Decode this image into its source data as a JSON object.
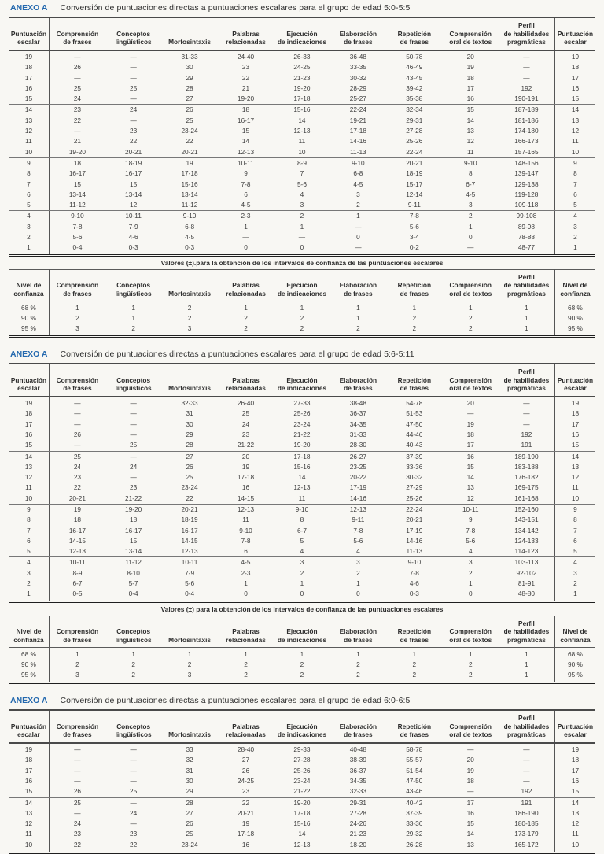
{
  "colors": {
    "anexo_blue": "#2368ae",
    "paper": "#f8f7f3",
    "text": "#3a3a3a"
  },
  "columns": {
    "scalar_header": "Puntuación\nescalar",
    "conf_header": "Nivel de\nconfianza",
    "tests": [
      "Comprensión\nde frases",
      "Conceptos\nlingüísticos",
      "Morfosintaxis",
      "Palabras\nrelacionadas",
      "Ejecución\nde indicaciones",
      "Elaboración\nde frases",
      "Repetición\nde frases",
      "Comprensión\noral de textos",
      "Perfil\nde habilidades\npragmáticas"
    ]
  },
  "sections": [
    {
      "anexo": "ANEXO A",
      "title": "Conversión de puntuaciones directas a puntuaciones escalares para el grupo de edad 5:0-5:5",
      "rows": [
        {
          "scalar": "19",
          "values": [
            "—",
            "—",
            "31-33",
            "24-40",
            "26-33",
            "36-48",
            "50-78",
            "20",
            "—"
          ]
        },
        {
          "scalar": "18",
          "values": [
            "26",
            "—",
            "30",
            "23",
            "24-25",
            "33-35",
            "46-49",
            "19",
            "—"
          ]
        },
        {
          "scalar": "17",
          "values": [
            "—",
            "—",
            "29",
            "22",
            "21-23",
            "30-32",
            "43-45",
            "18",
            "—"
          ]
        },
        {
          "scalar": "16",
          "values": [
            "25",
            "25",
            "28",
            "21",
            "19-20",
            "28-29",
            "39-42",
            "17",
            "192"
          ]
        },
        {
          "scalar": "15",
          "values": [
            "24",
            "—",
            "27",
            "19-20",
            "17-18",
            "25-27",
            "35-38",
            "16",
            "190-191"
          ]
        },
        {
          "scalar": "14",
          "values": [
            "23",
            "24",
            "26",
            "18",
            "15-16",
            "22-24",
            "32-34",
            "15",
            "187-189"
          ]
        },
        {
          "scalar": "13",
          "values": [
            "22",
            "—",
            "25",
            "16-17",
            "14",
            "19-21",
            "29-31",
            "14",
            "181-186"
          ]
        },
        {
          "scalar": "12",
          "values": [
            "—",
            "23",
            "23-24",
            "15",
            "12-13",
            "17-18",
            "27-28",
            "13",
            "174-180"
          ]
        },
        {
          "scalar": "11",
          "values": [
            "21",
            "22",
            "22",
            "14",
            "11",
            "14-16",
            "25-26",
            "12",
            "166-173"
          ]
        },
        {
          "scalar": "10",
          "values": [
            "19-20",
            "20-21",
            "20-21",
            "12-13",
            "10",
            "11-13",
            "22-24",
            "11",
            "157-165"
          ]
        },
        {
          "scalar": "9",
          "values": [
            "18",
            "18-19",
            "19",
            "10-11",
            "8-9",
            "9-10",
            "20-21",
            "9-10",
            "148-156"
          ]
        },
        {
          "scalar": "8",
          "values": [
            "16-17",
            "16-17",
            "17-18",
            "9",
            "7",
            "6-8",
            "18-19",
            "8",
            "139-147"
          ]
        },
        {
          "scalar": "7",
          "values": [
            "15",
            "15",
            "15-16",
            "7-8",
            "5-6",
            "4-5",
            "15-17",
            "6-7",
            "129-138"
          ]
        },
        {
          "scalar": "6",
          "values": [
            "13-14",
            "13-14",
            "13-14",
            "6",
            "4",
            "3",
            "12-14",
            "4-5",
            "119-128"
          ]
        },
        {
          "scalar": "5",
          "values": [
            "11-12",
            "12",
            "11-12",
            "4-5",
            "3",
            "2",
            "9-11",
            "3",
            "109-118"
          ]
        },
        {
          "scalar": "4",
          "values": [
            "9-10",
            "10-11",
            "9-10",
            "2-3",
            "2",
            "1",
            "7-8",
            "2",
            "99-108"
          ]
        },
        {
          "scalar": "3",
          "values": [
            "7-8",
            "7-9",
            "6-8",
            "1",
            "1",
            "—",
            "5-6",
            "1",
            "89-98"
          ]
        },
        {
          "scalar": "2",
          "values": [
            "5-6",
            "4-6",
            "4-5",
            "—",
            "—",
            "0",
            "3-4",
            "0",
            "78-88"
          ]
        },
        {
          "scalar": "1",
          "values": [
            "0-4",
            "0-3",
            "0-3",
            "0",
            "0",
            "—",
            "0-2",
            "—",
            "48-77"
          ]
        }
      ],
      "valores_caption": "Valores (±).para la obtención de los intervalos de confianza de las puntuaciones escalares",
      "conf_rows": [
        {
          "level": "68 %",
          "values": [
            "1",
            "1",
            "2",
            "1",
            "1",
            "1",
            "1",
            "1",
            "1"
          ]
        },
        {
          "level": "90 %",
          "values": [
            "2",
            "1",
            "2",
            "2",
            "2",
            "1",
            "2",
            "2",
            "1"
          ]
        },
        {
          "level": "95 %",
          "values": [
            "3",
            "2",
            "3",
            "2",
            "2",
            "2",
            "2",
            "2",
            "1"
          ]
        }
      ]
    },
    {
      "anexo": "ANEXO A",
      "title": "Conversión de puntuaciones directas a puntuaciones escalares para el grupo de edad 5:6-5:11",
      "rows": [
        {
          "scalar": "19",
          "values": [
            "—",
            "—",
            "32-33",
            "26-40",
            "27-33",
            "38-48",
            "54-78",
            "20",
            "—"
          ]
        },
        {
          "scalar": "18",
          "values": [
            "—",
            "—",
            "31",
            "25",
            "25-26",
            "36-37",
            "51-53",
            "—",
            "—"
          ]
        },
        {
          "scalar": "17",
          "values": [
            "—",
            "—",
            "30",
            "24",
            "23-24",
            "34-35",
            "47-50",
            "19",
            "—"
          ]
        },
        {
          "scalar": "16",
          "values": [
            "26",
            "—",
            "29",
            "23",
            "21-22",
            "31-33",
            "44-46",
            "18",
            "192"
          ]
        },
        {
          "scalar": "15",
          "values": [
            "—",
            "25",
            "28",
            "21-22",
            "19-20",
            "28-30",
            "40-43",
            "17",
            "191"
          ]
        },
        {
          "scalar": "14",
          "values": [
            "25",
            "—",
            "27",
            "20",
            "17-18",
            "26-27",
            "37-39",
            "16",
            "189-190"
          ]
        },
        {
          "scalar": "13",
          "values": [
            "24",
            "24",
            "26",
            "19",
            "15-16",
            "23-25",
            "33-36",
            "15",
            "183-188"
          ]
        },
        {
          "scalar": "12",
          "values": [
            "23",
            "—",
            "25",
            "17-18",
            "14",
            "20-22",
            "30-32",
            "14",
            "176-182"
          ]
        },
        {
          "scalar": "11",
          "values": [
            "22",
            "23",
            "23-24",
            "16",
            "12-13",
            "17-19",
            "27-29",
            "13",
            "169-175"
          ]
        },
        {
          "scalar": "10",
          "values": [
            "20-21",
            "21-22",
            "22",
            "14-15",
            "11",
            "14-16",
            "25-26",
            "12",
            "161-168"
          ]
        },
        {
          "scalar": "9",
          "values": [
            "19",
            "19-20",
            "20-21",
            "12-13",
            "9-10",
            "12-13",
            "22-24",
            "10-11",
            "152-160"
          ]
        },
        {
          "scalar": "8",
          "values": [
            "18",
            "18",
            "18-19",
            "11",
            "8",
            "9-11",
            "20-21",
            "9",
            "143-151"
          ]
        },
        {
          "scalar": "7",
          "values": [
            "16-17",
            "16-17",
            "16-17",
            "9-10",
            "6-7",
            "7-8",
            "17-19",
            "7-8",
            "134-142"
          ]
        },
        {
          "scalar": "6",
          "values": [
            "14-15",
            "15",
            "14-15",
            "7-8",
            "5",
            "5-6",
            "14-16",
            "5-6",
            "124-133"
          ]
        },
        {
          "scalar": "5",
          "values": [
            "12-13",
            "13-14",
            "12-13",
            "6",
            "4",
            "4",
            "11-13",
            "4",
            "114-123"
          ]
        },
        {
          "scalar": "4",
          "values": [
            "10-11",
            "11-12",
            "10-11",
            "4-5",
            "3",
            "3",
            "9-10",
            "3",
            "103-113"
          ]
        },
        {
          "scalar": "3",
          "values": [
            "8-9",
            "8-10",
            "7-9",
            "2-3",
            "2",
            "2",
            "7-8",
            "2",
            "92-102"
          ]
        },
        {
          "scalar": "2",
          "values": [
            "6-7",
            "5-7",
            "5-6",
            "1",
            "1",
            "1",
            "4-6",
            "1",
            "81-91"
          ]
        },
        {
          "scalar": "1",
          "values": [
            "0-5",
            "0-4",
            "0-4",
            "0",
            "0",
            "0",
            "0-3",
            "0",
            "48-80"
          ]
        }
      ],
      "valores_caption": "Valores (±) para la obtención de los intervalos de confianza de las puntuaciones escalares",
      "conf_rows": [
        {
          "level": "68 %",
          "values": [
            "1",
            "1",
            "1",
            "1",
            "1",
            "1",
            "1",
            "1",
            "1"
          ]
        },
        {
          "level": "90 %",
          "values": [
            "2",
            "2",
            "2",
            "2",
            "2",
            "2",
            "2",
            "2",
            "1"
          ]
        },
        {
          "level": "95 %",
          "values": [
            "3",
            "2",
            "3",
            "2",
            "2",
            "2",
            "2",
            "2",
            "1"
          ]
        }
      ]
    },
    {
      "anexo": "ANEXO A",
      "title": "Conversión de puntuaciones directas a puntuaciones escalares para el grupo de edad 6:0-6:5",
      "rows": [
        {
          "scalar": "19",
          "values": [
            "—",
            "—",
            "33",
            "28-40",
            "29-33",
            "40-48",
            "58-78",
            "—",
            "—"
          ]
        },
        {
          "scalar": "18",
          "values": [
            "—",
            "—",
            "32",
            "27",
            "27-28",
            "38-39",
            "55-57",
            "20",
            "—"
          ]
        },
        {
          "scalar": "17",
          "values": [
            "—",
            "—",
            "31",
            "26",
            "25-26",
            "36-37",
            "51-54",
            "19",
            "—"
          ]
        },
        {
          "scalar": "16",
          "values": [
            "—",
            "—",
            "30",
            "24-25",
            "23-24",
            "34-35",
            "47-50",
            "18",
            "—"
          ]
        },
        {
          "scalar": "15",
          "values": [
            "26",
            "25",
            "29",
            "23",
            "21-22",
            "32-33",
            "43-46",
            "—",
            "192"
          ]
        },
        {
          "scalar": "14",
          "values": [
            "25",
            "—",
            "28",
            "22",
            "19-20",
            "29-31",
            "40-42",
            "17",
            "191"
          ]
        },
        {
          "scalar": "13",
          "values": [
            "—",
            "24",
            "27",
            "20-21",
            "17-18",
            "27-28",
            "37-39",
            "16",
            "186-190"
          ]
        },
        {
          "scalar": "12",
          "values": [
            "24",
            "—",
            "26",
            "19",
            "15-16",
            "24-26",
            "33-36",
            "15",
            "180-185"
          ]
        },
        {
          "scalar": "11",
          "values": [
            "23",
            "23",
            "25",
            "17-18",
            "14",
            "21-23",
            "29-32",
            "14",
            "173-179"
          ]
        },
        {
          "scalar": "10",
          "values": [
            "22",
            "22",
            "23-24",
            "16",
            "12-13",
            "18-20",
            "26-28",
            "13",
            "165-172"
          ]
        }
      ]
    }
  ]
}
